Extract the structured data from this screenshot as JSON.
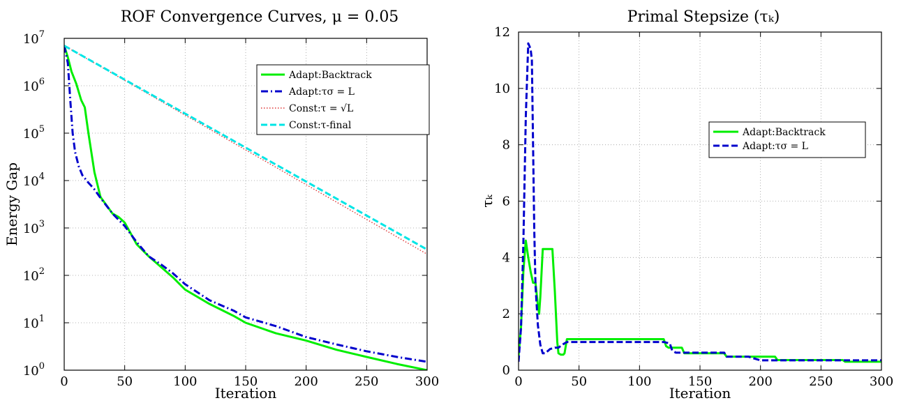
{
  "chart_data": [
    {
      "type": "line",
      "title": "ROF Convergence Curves, μ = 0.05",
      "xlabel": "Iteration",
      "ylabel": "Energy Gap",
      "xlim": [
        0,
        300
      ],
      "ylim": [
        1,
        10000000
      ],
      "yscale": "log",
      "xticks": [
        "0",
        "50",
        "100",
        "150",
        "200",
        "250",
        "300"
      ],
      "yticks": [
        {
          "base": "10",
          "exp": "0"
        },
        {
          "base": "10",
          "exp": "1"
        },
        {
          "base": "10",
          "exp": "2"
        },
        {
          "base": "10",
          "exp": "3"
        },
        {
          "base": "10",
          "exp": "4"
        },
        {
          "base": "10",
          "exp": "5"
        },
        {
          "base": "10",
          "exp": "6"
        },
        {
          "base": "10",
          "exp": "7"
        }
      ],
      "grid": true,
      "legend_position": "top-right",
      "series": [
        {
          "name": "Adapt:Backtrack",
          "color": "#00ee00",
          "dash": "solid",
          "x": [
            0,
            3,
            6,
            10,
            14,
            17,
            20,
            25,
            30,
            35,
            40,
            45,
            50,
            60,
            70,
            80,
            90,
            100,
            120,
            140,
            150,
            175,
            200,
            225,
            250,
            275,
            300
          ],
          "y": [
            7000000,
            4000000,
            2000000,
            1100000,
            500000,
            350000,
            100000,
            15000,
            4500,
            3000,
            2000,
            1700,
            1300,
            450,
            250,
            150,
            90,
            50,
            25,
            14,
            10,
            6,
            4.2,
            2.7,
            1.9,
            1.35,
            1.0
          ]
        },
        {
          "name": "Adapt:τσ = L",
          "color": "#0000cc",
          "dash": "dashdot",
          "x": [
            0,
            3,
            5,
            7,
            9,
            12,
            15,
            20,
            25,
            30,
            40,
            50,
            60,
            70,
            80,
            90,
            100,
            120,
            140,
            150,
            175,
            200,
            225,
            250,
            275,
            300
          ],
          "y": [
            7000000,
            3000000,
            500000,
            100000,
            40000,
            20000,
            13000,
            9000,
            6500,
            4300,
            2000,
            1100,
            500,
            250,
            170,
            110,
            65,
            30,
            18,
            13,
            8.5,
            5.0,
            3.5,
            2.5,
            1.9,
            1.5
          ]
        },
        {
          "name": "Const:τ = √L",
          "color": "#dd3333",
          "dash": "dotted",
          "x": [
            0,
            300
          ],
          "y": [
            7000000,
            280
          ]
        },
        {
          "name": "Const:τ-final",
          "color": "#00e5e5",
          "dash": "dashed",
          "x": [
            0,
            300
          ],
          "y": [
            7000000,
            350
          ]
        }
      ]
    },
    {
      "type": "line",
      "title": "Primal Stepsize (τₖ)",
      "xlabel": "Iteration",
      "ylabel": "τₖ",
      "xlim": [
        0,
        300
      ],
      "ylim": [
        0,
        12
      ],
      "xticks": [
        "0",
        "50",
        "100",
        "150",
        "200",
        "250",
        "300"
      ],
      "yticks": [
        "0",
        "2",
        "4",
        "6",
        "8",
        "10",
        "12"
      ],
      "grid": true,
      "legend_position": "middle-right",
      "series": [
        {
          "name": "Adapt:Backtrack",
          "color": "#00ee00",
          "dash": "solid",
          "x": [
            0,
            2,
            4,
            6,
            8,
            10,
            12,
            14,
            16,
            17,
            18,
            20,
            22,
            24,
            26,
            28,
            30,
            32,
            33,
            35,
            37,
            38,
            40,
            42,
            44,
            120,
            122,
            124,
            135,
            137,
            139,
            165,
            170,
            172,
            190,
            195,
            200,
            205,
            210,
            212,
            214,
            220,
            230,
            240,
            250,
            260,
            268,
            270,
            272,
            280,
            290,
            300
          ],
          "y": [
            0.5,
            1.5,
            3.5,
            4.6,
            4.0,
            3.5,
            3.1,
            3.1,
            2.3,
            2.0,
            2.6,
            4.3,
            4.3,
            4.3,
            4.3,
            4.3,
            2.8,
            1.0,
            0.6,
            0.55,
            0.55,
            0.6,
            1.1,
            1.1,
            1.1,
            1.1,
            0.85,
            0.8,
            0.8,
            0.6,
            0.6,
            0.6,
            0.6,
            0.48,
            0.48,
            0.48,
            0.48,
            0.48,
            0.48,
            0.48,
            0.36,
            0.36,
            0.36,
            0.36,
            0.36,
            0.36,
            0.36,
            0.3,
            0.3,
            0.3,
            0.3,
            0.3
          ]
        },
        {
          "name": "Adapt:τσ = L",
          "color": "#0000cc",
          "dash": "dashed",
          "x": [
            0,
            2,
            4,
            6,
            8,
            9,
            10,
            11,
            12,
            13,
            14,
            16,
            18,
            20,
            22,
            26,
            30,
            33,
            36,
            40,
            45,
            50,
            100,
            120,
            125,
            127,
            130,
            140,
            150,
            160,
            165,
            170,
            172,
            190,
            192,
            200,
            260,
            300
          ],
          "y": [
            0.3,
            1.5,
            4.5,
            9.0,
            11.6,
            11.5,
            11.4,
            11.0,
            8.0,
            5.0,
            3.0,
            1.6,
            0.9,
            0.6,
            0.6,
            0.75,
            0.8,
            0.8,
            0.9,
            1.0,
            1.0,
            1.0,
            1.0,
            1.0,
            0.95,
            0.7,
            0.62,
            0.62,
            0.62,
            0.62,
            0.62,
            0.62,
            0.48,
            0.48,
            0.45,
            0.35,
            0.35,
            0.35
          ]
        }
      ]
    }
  ]
}
